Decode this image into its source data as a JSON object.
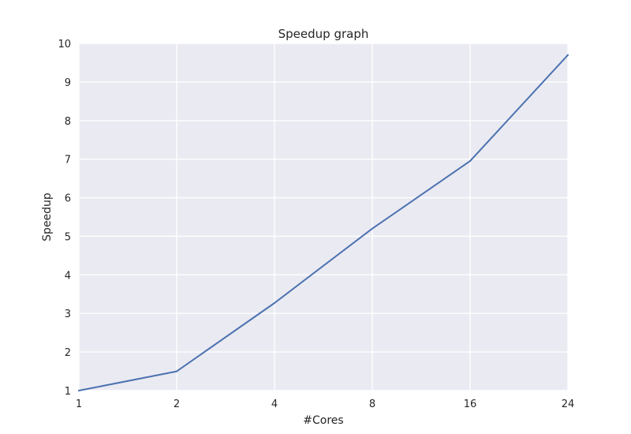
{
  "chart_data": {
    "type": "line",
    "title": "Speedup graph",
    "xlabel": "#Cores",
    "ylabel": "Speedup",
    "x_tick_labels": [
      "1",
      "2",
      "4",
      "8",
      "16",
      "24"
    ],
    "y_tick_labels": [
      "1",
      "2",
      "3",
      "4",
      "5",
      "6",
      "7",
      "8",
      "9",
      "10"
    ],
    "ylim": [
      1,
      10
    ],
    "grid": true,
    "colors": {
      "plot_background": "#EAEAF2",
      "grid": "#FFFFFF",
      "line": "#4C72B0",
      "text": "#262626"
    },
    "series": [
      {
        "x": [
          "1",
          "2",
          "4",
          "8",
          "16",
          "24"
        ],
        "values": [
          1.0,
          1.5,
          3.27,
          5.2,
          6.95,
          9.7
        ]
      }
    ]
  }
}
